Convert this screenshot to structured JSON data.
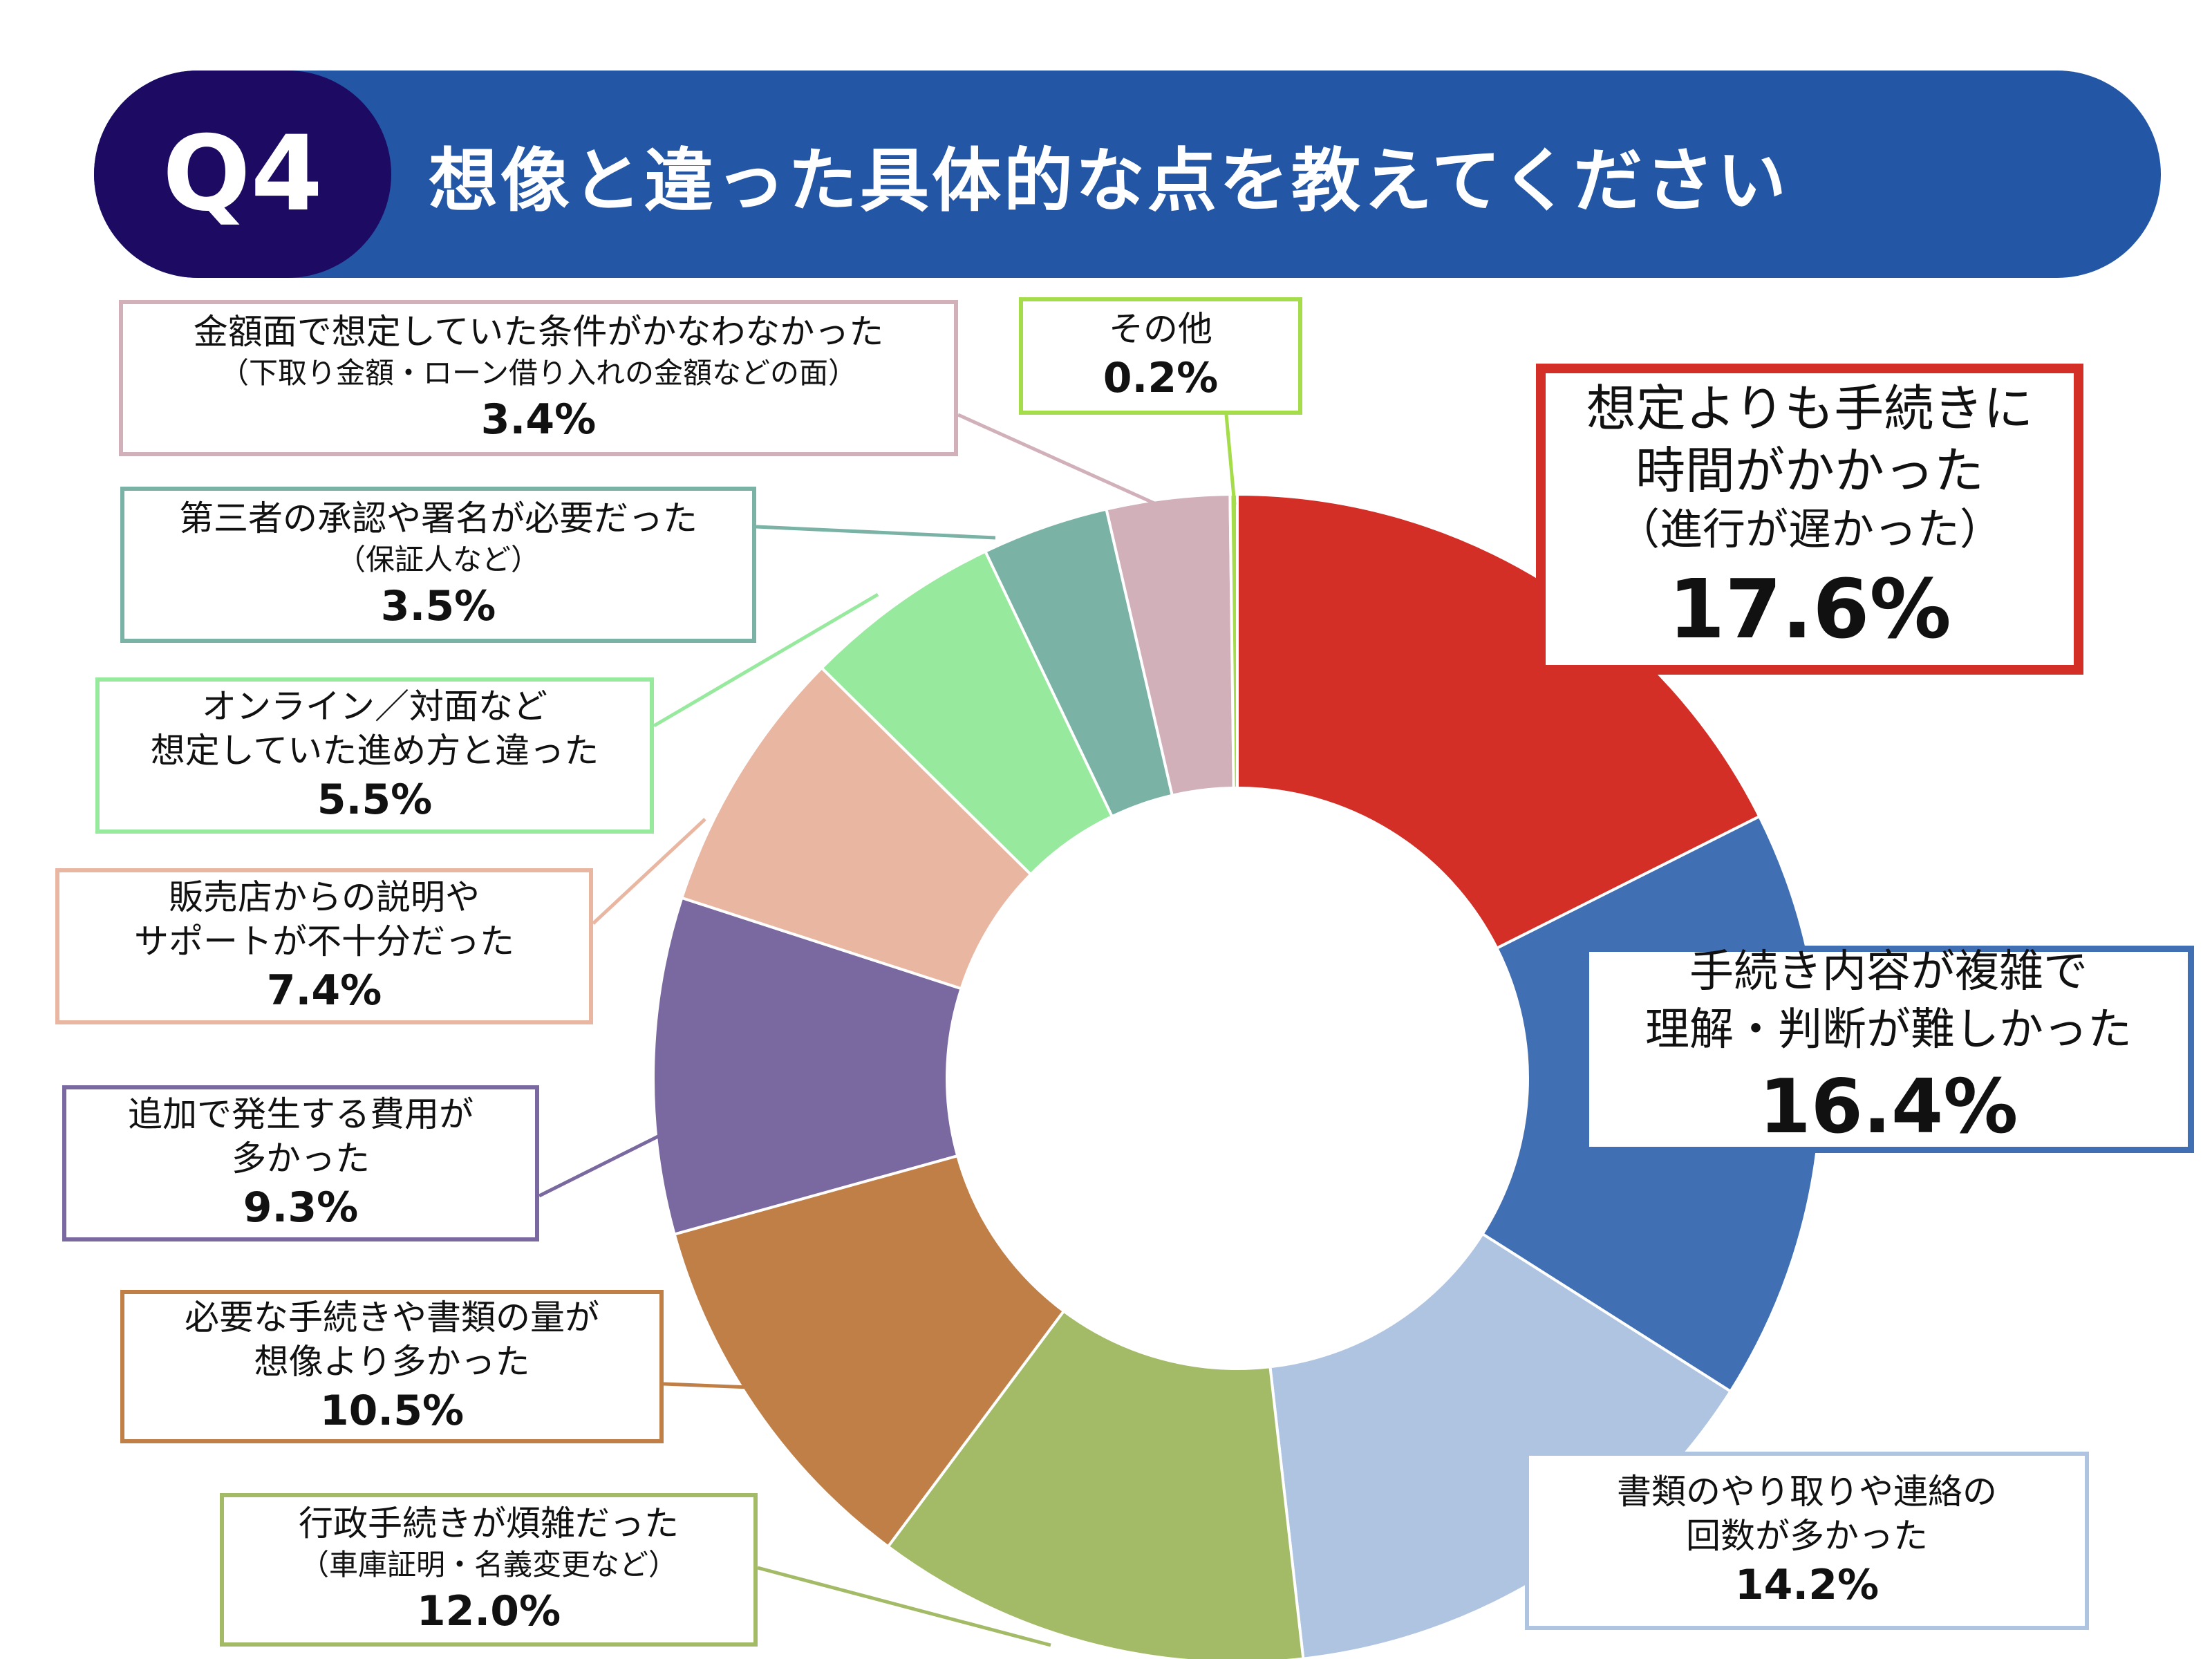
{
  "header": {
    "question_no": "Q4",
    "title": "想像と違った具体的な点を教えてください"
  },
  "chart_data": {
    "type": "pie",
    "donut": true,
    "unit": "%",
    "slices": [
      {
        "lines": [
          "想定よりも手続きに",
          "時間がかかった"
        ],
        "sub": "（進行が遅かった）",
        "value": 17.6,
        "pct": "17.6%",
        "color": "#d32f27"
      },
      {
        "lines": [
          "手続き内容が複雑で",
          "理解・判断が難しかった"
        ],
        "sub": "",
        "value": 16.4,
        "pct": "16.4%",
        "color": "#416fb4"
      },
      {
        "lines": [
          "書類のやり取りや連絡の",
          "回数が多かった"
        ],
        "sub": "",
        "value": 14.2,
        "pct": "14.2%",
        "color": "#afc4e1"
      },
      {
        "lines": [
          "行政手続きが煩雑だった"
        ],
        "sub": "（車庫証明・名義変更など）",
        "value": 12.0,
        "pct": "12.0%",
        "color": "#a3ba66"
      },
      {
        "lines": [
          "必要な手続きや書類の量が",
          "想像より多かった"
        ],
        "sub": "",
        "value": 10.5,
        "pct": "10.5%",
        "color": "#c07f46"
      },
      {
        "lines": [
          "追加で発生する費用が",
          "多かった"
        ],
        "sub": "",
        "value": 9.3,
        "pct": "9.3%",
        "color": "#7a68a0"
      },
      {
        "lines": [
          "販売店からの説明や",
          "サポートが不十分だった"
        ],
        "sub": "",
        "value": 7.4,
        "pct": "7.4%",
        "color": "#e9b6a1"
      },
      {
        "lines": [
          "オンライン／対面など",
          "想定していた進め方と違った"
        ],
        "sub": "",
        "value": 5.5,
        "pct": "5.5%",
        "color": "#97e99d"
      },
      {
        "lines": [
          "第三者の承認や署名が必要だった"
        ],
        "sub": "（保証人など）",
        "value": 3.5,
        "pct": "3.5%",
        "color": "#7ab3a6"
      },
      {
        "lines": [
          "金額面で想定していた条件がかなわなかった"
        ],
        "sub": "（下取り金額・ローン借り入れの金額などの面）",
        "value": 3.4,
        "pct": "3.4%",
        "color": "#d1b0ba"
      },
      {
        "lines": [
          "その他"
        ],
        "sub": "",
        "value": 0.2,
        "pct": "0.2%",
        "color": "#a4dc4a"
      }
    ]
  }
}
